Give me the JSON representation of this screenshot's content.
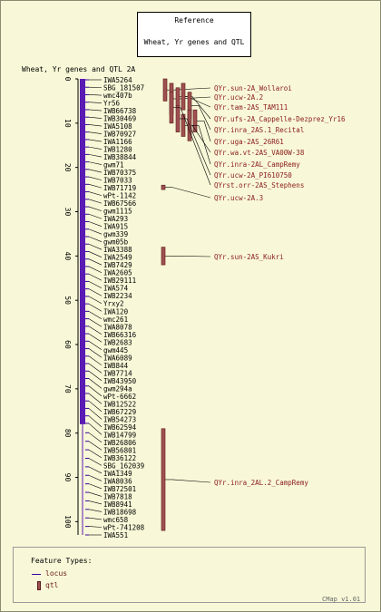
{
  "reference": {
    "title": "Reference",
    "subtitle": "Wheat, Yr genes and QTL"
  },
  "map_title": "Wheat, Yr genes and QTL 2A",
  "axis_ticks": [
    "0",
    "10",
    "20",
    "30",
    "40",
    "50",
    "60",
    "70",
    "80",
    "90",
    "100"
  ],
  "loci": [
    "IWA5264",
    "SBG_181507",
    "wmc407b",
    "Yr56",
    "IWB66738",
    "IWB30469",
    "IWA5108",
    "IWB70927",
    "IWA1166",
    "IWB1280",
    "IWB38844",
    "gwm71",
    "IWB70375",
    "IWB7033",
    "IWB71719",
    "wPt-1142",
    "IWB67566",
    "gwm1115",
    "IWA293",
    "IWA915",
    "gwm339",
    "gwm05b",
    "IWA3388",
    "IWA2549",
    "IWB7429",
    "IWA2605",
    "IWB29111",
    "IWA574",
    "IWB2234",
    "Yrxy2",
    "IWA120",
    "wmc261",
    "IWA8078",
    "IWB66316",
    "IWB2683",
    "gwm445",
    "IWA6089",
    "IWB844",
    "IWB7714",
    "IWB43950",
    "gwm294a",
    "wPt-6662",
    "IWB12522",
    "IWB67229",
    "IWB54273",
    "IWB62594",
    "IWB14799",
    "IWB26806",
    "IWB56801",
    "IWB36122",
    "SBG_162039",
    "IWA1349",
    "IWA8036",
    "IWB72501",
    "IWB7818",
    "IWB8941",
    "IWB18698",
    "wmc658",
    "wPt-741208",
    "IWA551"
  ],
  "qtls": [
    {
      "label": "QYr.sun-2A_Wollaroi",
      "start": 0,
      "end": 5
    },
    {
      "label": "QYr.ucw-2A.2",
      "start": 1,
      "end": 8
    },
    {
      "label": "QYr.tam-2AS_TAM111",
      "start": 2,
      "end": 6
    },
    {
      "label": "QYr.ufs-2A_Cappelle-Dezprez_Yr16",
      "start": 1,
      "end": 7
    },
    {
      "label": "QYr.inra_2AS.1_Recital",
      "start": 3,
      "end": 9
    },
    {
      "label": "QYr.uga-2AS_26R61",
      "start": 7,
      "end": 12
    },
    {
      "label": "QYr.wa.vt-2AS_VA00W-38",
      "start": 8,
      "end": 13
    },
    {
      "label": "QYr.inra-2AL_CampRemy",
      "start": 7,
      "end": 14
    },
    {
      "label": "QYr.ucw-2A_PI610750",
      "start": 6,
      "end": 12
    },
    {
      "label": "QYrst.orr-2AS_Stephens",
      "start": 3,
      "end": 10
    },
    {
      "label": "QYr.ucw-2A.3",
      "start": 24,
      "end": 25
    },
    {
      "label": "QYr.sun-2AS_Kukri",
      "start": 38,
      "end": 42
    },
    {
      "label": "QYr.inra_2AL.2_CampRemy",
      "start": 79,
      "end": 102
    }
  ],
  "legend": {
    "title": "Feature Types:",
    "items": [
      "locus",
      "qtl"
    ]
  },
  "footer": "CMap v1.01",
  "colors": {
    "chromosome": "#5a1ab4",
    "locus_line": "#3c00a0",
    "qtl_fill": "#a05050",
    "qtl_label": "#8a1a1a",
    "background": "#f8f8d8"
  }
}
